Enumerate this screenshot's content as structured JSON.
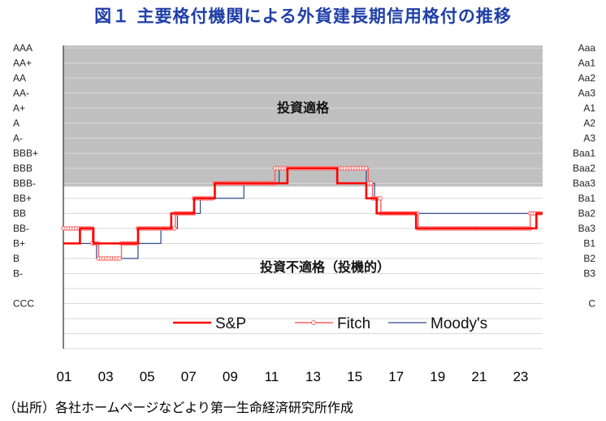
{
  "title": "図１ 主要格付機関による外貨建長期信用格付の推移",
  "source": "（出所）各社ホームページなどより第一生命経済研究所作成",
  "chart_data": {
    "type": "line",
    "step": true,
    "title": "図１ 主要格付機関による外貨建長期信用格付の推移",
    "xlim": [
      2001,
      2024.1
    ],
    "x_tick_labels": [
      "01",
      "03",
      "05",
      "07",
      "09",
      "11",
      "13",
      "15",
      "17",
      "19",
      "21",
      "23"
    ],
    "x_tick_values": [
      2001,
      2003,
      2005,
      2007,
      2009,
      2011,
      2013,
      2015,
      2017,
      2019,
      2021,
      2023
    ],
    "y_labels_left": [
      "AAA",
      "AA+",
      "AA",
      "AA-",
      "A+",
      "A",
      "A-",
      "BBB+",
      "BBB",
      "BBB-",
      "BB+",
      "BB",
      "BB-",
      "B+",
      "B",
      "B-",
      "",
      "CCC",
      "",
      "",
      ""
    ],
    "y_labels_right": [
      "Aaa",
      "Aa1",
      "Aa2",
      "Aa3",
      "A1",
      "A2",
      "A3",
      "Baa1",
      "Baa2",
      "Baa3",
      "Ba1",
      "Ba2",
      "Ba3",
      "B1",
      "B2",
      "B3",
      "",
      "C",
      "",
      "",
      ""
    ],
    "grid": true,
    "investment_grade_boundary": "BBB-",
    "regions": [
      {
        "label": "投資適格",
        "color": "#c0c0c0"
      },
      {
        "label": "投資不適格（投機的）",
        "color": "#ffffff"
      }
    ],
    "legend_placement": "bottom",
    "series": [
      {
        "name": "S&P",
        "color": "#ff0000",
        "style": "thick",
        "points": [
          [
            2001,
            "B+"
          ],
          [
            2001.8,
            "BB-"
          ],
          [
            2002.45,
            "B+"
          ],
          [
            2004.6,
            "BB-"
          ],
          [
            2006.2,
            "BB"
          ],
          [
            2007.3,
            "BB+"
          ],
          [
            2008.3,
            "BBB-"
          ],
          [
            2011.8,
            "BBB"
          ],
          [
            2014.2,
            "BBB-"
          ],
          [
            2015.6,
            "BB+"
          ],
          [
            2016.1,
            "BB"
          ],
          [
            2018.0,
            "BB-"
          ],
          [
            2023.8,
            "BB"
          ]
        ]
      },
      {
        "name": "Fitch",
        "color": "#ff6060",
        "style": "circles",
        "points": [
          [
            2001,
            "BB-"
          ],
          [
            2002.4,
            "B+"
          ],
          [
            2002.7,
            "B"
          ],
          [
            2003.8,
            "B+"
          ],
          [
            2004.6,
            "BB-"
          ],
          [
            2006.4,
            "BB"
          ],
          [
            2007.3,
            "BB+"
          ],
          [
            2008.3,
            "BBB-"
          ],
          [
            2011.2,
            "BBB"
          ],
          [
            2015.7,
            "BBB-"
          ],
          [
            2015.9,
            "BB+"
          ],
          [
            2016.3,
            "BB"
          ],
          [
            2018.1,
            "BB-"
          ],
          [
            2023.5,
            "BB"
          ]
        ]
      },
      {
        "name": "Moody's",
        "color": "#2f4a8a",
        "style": "thin",
        "points": [
          [
            2001,
            "B1"
          ],
          [
            2002.6,
            "B2"
          ],
          [
            2004.6,
            "B1"
          ],
          [
            2005.7,
            "Ba3"
          ],
          [
            2006.5,
            "Ba2"
          ],
          [
            2007.6,
            "Ba1"
          ],
          [
            2009.7,
            "Baa3"
          ],
          [
            2011.4,
            "Baa2"
          ],
          [
            2015.6,
            "Baa3"
          ],
          [
            2016.0,
            "Ba1"
          ],
          [
            2016.1,
            "Ba2"
          ]
        ]
      }
    ]
  }
}
